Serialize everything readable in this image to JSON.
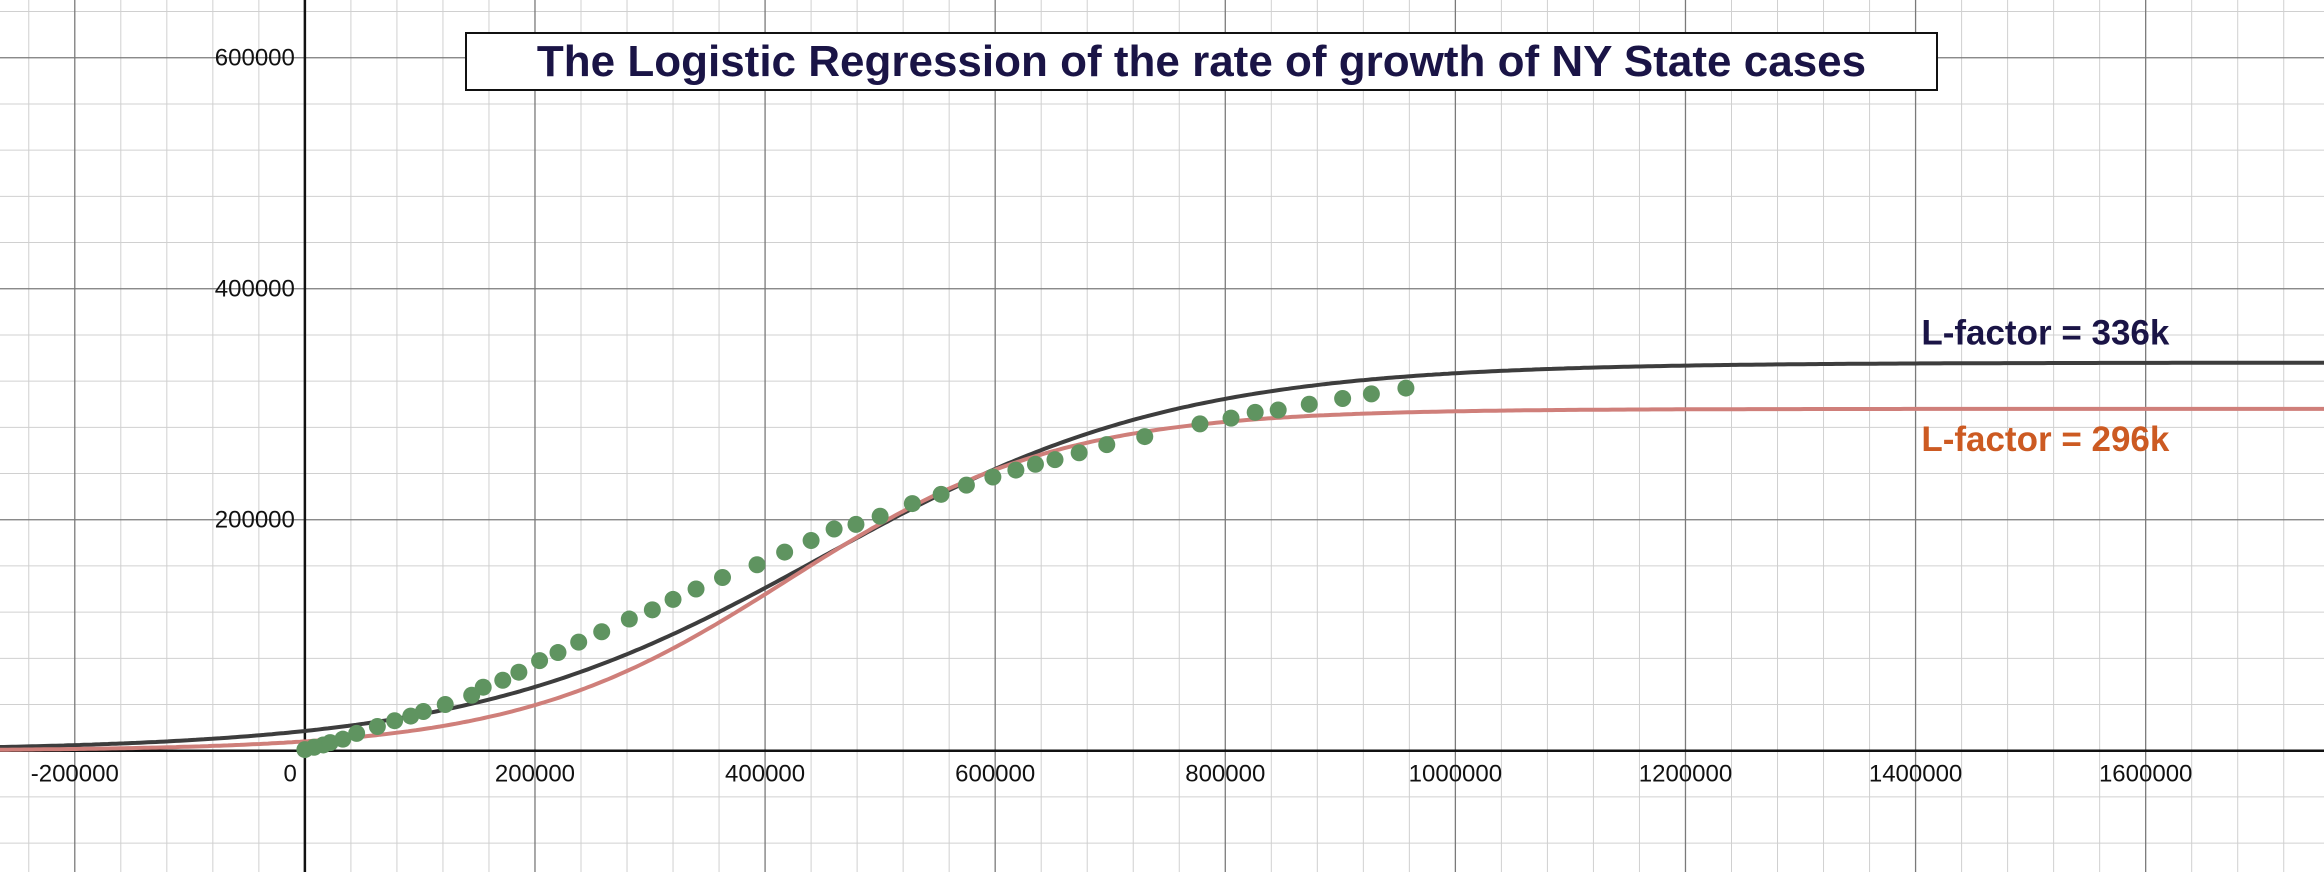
{
  "chart_data": {
    "type": "scatter",
    "title": "The Logistic Regression of the rate of growth of NY State cases",
    "xlabel": "",
    "ylabel": "",
    "xlim": [
      -265000,
      1755000
    ],
    "ylim": [
      -105000,
      650000
    ],
    "grid": true,
    "x_ticks": [
      -200000,
      0,
      200000,
      400000,
      600000,
      800000,
      1000000,
      1200000,
      1400000,
      1600000
    ],
    "x_tick_labels": [
      "-200000",
      "0",
      "200000",
      "400000",
      "600000",
      "800000",
      "1000000",
      "1200000",
      "1400000",
      "1600000"
    ],
    "y_ticks": [
      200000,
      400000,
      600000
    ],
    "y_tick_labels": [
      "200000",
      "400000",
      "600000"
    ],
    "series": [
      {
        "kind": "scatter",
        "color": "#5f9460",
        "points": [
          [
            0,
            1000
          ],
          [
            8000,
            3000
          ],
          [
            16000,
            5000
          ],
          [
            22000,
            7000
          ],
          [
            33000,
            10000
          ],
          [
            45000,
            15000
          ],
          [
            63000,
            21000
          ],
          [
            78000,
            26000
          ],
          [
            92000,
            30000
          ],
          [
            103000,
            34000
          ],
          [
            122000,
            40000
          ],
          [
            145000,
            48000
          ],
          [
            155000,
            55000
          ],
          [
            172000,
            61000
          ],
          [
            186000,
            68000
          ],
          [
            204000,
            78000
          ],
          [
            220000,
            85000
          ],
          [
            238000,
            94000
          ],
          [
            258000,
            103000
          ],
          [
            282000,
            114000
          ],
          [
            302000,
            122000
          ],
          [
            320000,
            131000
          ],
          [
            340000,
            140000
          ],
          [
            363000,
            150000
          ],
          [
            393000,
            161000
          ],
          [
            417000,
            172000
          ],
          [
            440000,
            182000
          ],
          [
            460000,
            192000
          ],
          [
            479000,
            196000
          ],
          [
            500000,
            203000
          ],
          [
            528000,
            214000
          ],
          [
            553000,
            222000
          ],
          [
            575000,
            230000
          ],
          [
            598000,
            237000
          ],
          [
            618000,
            243000
          ],
          [
            635000,
            248000
          ],
          [
            652000,
            252000
          ],
          [
            673000,
            258000
          ],
          [
            697000,
            265000
          ],
          [
            730000,
            272000
          ],
          [
            778000,
            283000
          ],
          [
            805000,
            288000
          ],
          [
            826000,
            293000
          ],
          [
            846000,
            295000
          ],
          [
            873000,
            300000
          ],
          [
            902000,
            305000
          ],
          [
            927000,
            309000
          ],
          [
            957000,
            314000
          ]
        ]
      },
      {
        "kind": "curve",
        "label": "L-factor = 336k",
        "color": "#3d3d3d",
        "label_color": "#1a1446",
        "L": 336000,
        "k": 6.5e-06,
        "x0": 450000
      },
      {
        "kind": "curve",
        "label": "L-factor = 296k",
        "color": "#cf7f7a",
        "label_color": "#cc5a22",
        "L": 296000,
        "k": 8.5e-06,
        "x0": 420000
      }
    ],
    "colors": {
      "title_text": "#1a1446",
      "major_grid": "#7a7a7a",
      "minor_grid": "#d0d0d0",
      "axis": "#111111"
    }
  }
}
